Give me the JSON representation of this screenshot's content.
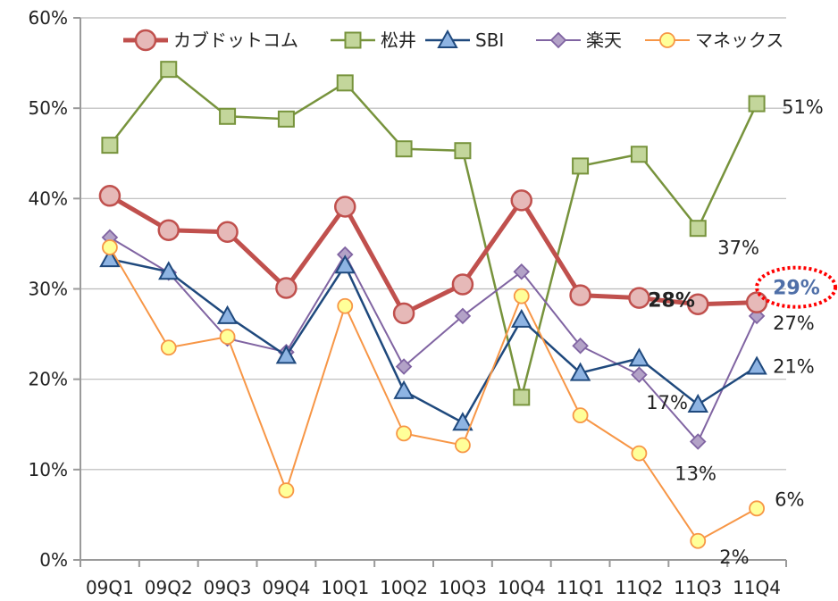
{
  "chart_data": {
    "type": "line",
    "title": "",
    "xlabel": "",
    "ylabel": "",
    "categories": [
      "09Q1",
      "09Q2",
      "09Q3",
      "09Q4",
      "10Q1",
      "10Q2",
      "10Q3",
      "10Q4",
      "11Q1",
      "11Q2",
      "11Q3",
      "11Q4"
    ],
    "ylim": [
      0,
      60
    ],
    "yticks": [
      {
        "value": 0,
        "label": "0%"
      },
      {
        "value": 10,
        "label": "10%"
      },
      {
        "value": 20,
        "label": "20%"
      },
      {
        "value": 30,
        "label": "30%"
      },
      {
        "value": 40,
        "label": "40%"
      },
      {
        "value": 50,
        "label": "50%"
      },
      {
        "value": 60,
        "label": "60%"
      }
    ],
    "grid": true,
    "legend": "top",
    "series": [
      {
        "name": "カブドットコム",
        "color": "#c0504d",
        "fill": "#e6b9b8",
        "marker": "circle",
        "values": [
          40.3,
          36.5,
          36.3,
          30.1,
          39.1,
          27.3,
          30.5,
          39.8,
          29.3,
          29.0,
          28.3,
          28.5
        ]
      },
      {
        "name": "松井",
        "color": "#77933c",
        "fill": "#c3d69b",
        "marker": "square",
        "values": [
          45.9,
          54.3,
          49.1,
          48.8,
          52.8,
          45.5,
          45.3,
          18.0,
          43.6,
          44.9,
          36.7,
          50.5
        ]
      },
      {
        "name": "SBI",
        "color": "#1f497d",
        "fill": "#8eb4e3",
        "marker": "triangle",
        "values": [
          33.3,
          31.9,
          27.0,
          22.6,
          32.6,
          18.7,
          15.2,
          26.6,
          20.7,
          22.3,
          17.2,
          21.4
        ]
      },
      {
        "name": "楽天",
        "color": "#8064a2",
        "fill": "#b3a2c7",
        "marker": "diamond",
        "values": [
          35.7,
          31.8,
          24.5,
          23.0,
          33.8,
          21.4,
          27.0,
          31.9,
          23.7,
          20.5,
          13.1,
          27.0
        ]
      },
      {
        "name": "マネックス",
        "color": "#f79646",
        "fill": "#ffff99",
        "marker": "circle-small",
        "values": [
          34.6,
          23.5,
          24.7,
          7.7,
          28.1,
          14.0,
          12.7,
          29.2,
          16.0,
          11.8,
          2.1,
          5.7
        ]
      }
    ],
    "annotations": [
      {
        "text": "51%",
        "series": "松井",
        "category": "11Q4",
        "style": "normal"
      },
      {
        "text": "37%",
        "series": "松井",
        "category": "11Q3",
        "style": "normal"
      },
      {
        "text": "28%",
        "series": "カブドットコム",
        "category": "11Q3",
        "style": "bold"
      },
      {
        "text": "29%",
        "series": "カブドットコム",
        "category": "11Q4",
        "style": "highlight",
        "color": "#4f6fa8",
        "highlight_color": "#ff0000"
      },
      {
        "text": "27%",
        "series": "楽天",
        "category": "11Q4",
        "style": "normal"
      },
      {
        "text": "17%",
        "series": "SBI",
        "category": "11Q3",
        "style": "normal"
      },
      {
        "text": "21%",
        "series": "SBI",
        "category": "11Q4",
        "style": "normal"
      },
      {
        "text": "13%",
        "series": "楽天",
        "category": "11Q3",
        "style": "normal"
      },
      {
        "text": "6%",
        "series": "マネックス",
        "category": "11Q4",
        "style": "normal"
      },
      {
        "text": "2%",
        "series": "マネックス",
        "category": "11Q3",
        "style": "normal"
      }
    ]
  }
}
